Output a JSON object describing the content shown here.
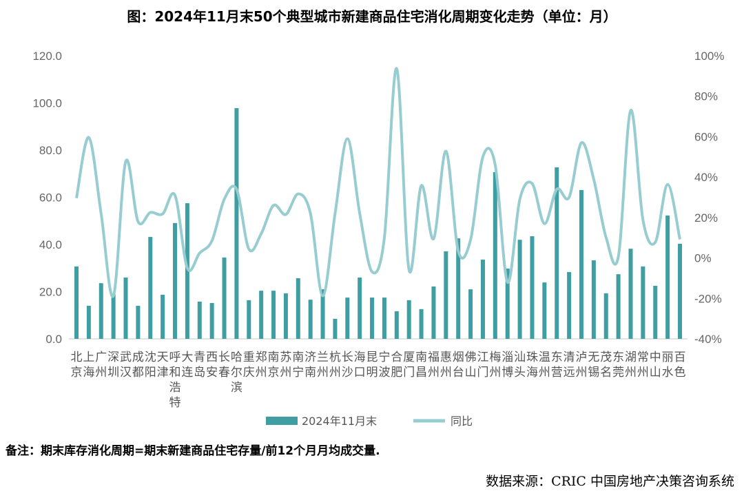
{
  "title": "图：2024年11月末50个典型城市新建商品住宅消化周期变化走势（单位：月）",
  "note": "备注：期末库存消化周期=期末新建商品住宅存量/前12个月月均成交量.",
  "source": "数据来源：CRIC 中国房地产决策咨询系统",
  "colors": {
    "bar": "#3f9ea1",
    "line": "#97cdd0",
    "axis": "#d9d9d9"
  },
  "chart_data": {
    "type": "bar+line",
    "categories": [
      "北京",
      "上海",
      "广州",
      "深圳",
      "武汉",
      "成都",
      "沈阳",
      "天津",
      "呼和浩特",
      "大连",
      "青岛",
      "西安",
      "长春",
      "哈尔滨",
      "重庆",
      "郑州",
      "南京",
      "苏州",
      "南宁",
      "济南",
      "兰州",
      "杭州",
      "长沙",
      "海口",
      "昆明",
      "宁波",
      "合肥",
      "厦门",
      "南昌",
      "福州",
      "惠州",
      "烟台",
      "佛山",
      "江门",
      "梅州",
      "淄博",
      "汕头",
      "珠海",
      "温州",
      "东营",
      "清远",
      "泸州",
      "无锡",
      "茂名",
      "东莞",
      "湖州",
      "常州",
      "中山",
      "丽水",
      "百色"
    ],
    "series": [
      {
        "name": "2024年11月末",
        "type": "bar",
        "axis": "left",
        "values": [
          30.7,
          14.0,
          23.6,
          19.0,
          26.0,
          14.0,
          43.2,
          18.7,
          49.1,
          57.5,
          15.8,
          15.2,
          34.5,
          97.8,
          16.4,
          20.4,
          20.4,
          19.3,
          25.7,
          16.6,
          21.0,
          8.5,
          17.5,
          26.0,
          17.5,
          17.5,
          11.7,
          16.4,
          12.6,
          22.2,
          37.1,
          42.6,
          21.0,
          33.6,
          70.7,
          29.8,
          42.0,
          43.5,
          23.9,
          72.7,
          28.3,
          63.1,
          33.3,
          19.3,
          27.4,
          38.2,
          30.7,
          22.5,
          52.3,
          40.3
        ]
      },
      {
        "name": "同比",
        "type": "line",
        "axis": "right",
        "unit": "%",
        "values": [
          29.6,
          59.6,
          22,
          -18.7,
          47.7,
          18,
          22.5,
          21.8,
          31,
          -5,
          2.4,
          8.5,
          29,
          34,
          4.4,
          12,
          26,
          21.5,
          31.7,
          22,
          -18.7,
          22,
          59,
          22,
          -6.8,
          10,
          93.7,
          -5.8,
          35.8,
          9.5,
          52.8,
          3.4,
          9,
          50,
          46,
          -12,
          29,
          36.8,
          17,
          34,
          30,
          57,
          39,
          10.2,
          0.7,
          73,
          18.7,
          7.8,
          36.4,
          9.2
        ]
      }
    ],
    "left_axis": {
      "ylim": [
        0,
        120
      ],
      "ticks": [
        "0.0",
        "20.0",
        "40.0",
        "60.0",
        "80.0",
        "100.0",
        "120.0"
      ]
    },
    "right_axis": {
      "ylim": [
        -40,
        100
      ],
      "ticks": [
        "-40%",
        "-20%",
        "0%",
        "20%",
        "40%",
        "60%",
        "80%",
        "100%"
      ]
    },
    "grid": false,
    "legend": "bottom"
  }
}
